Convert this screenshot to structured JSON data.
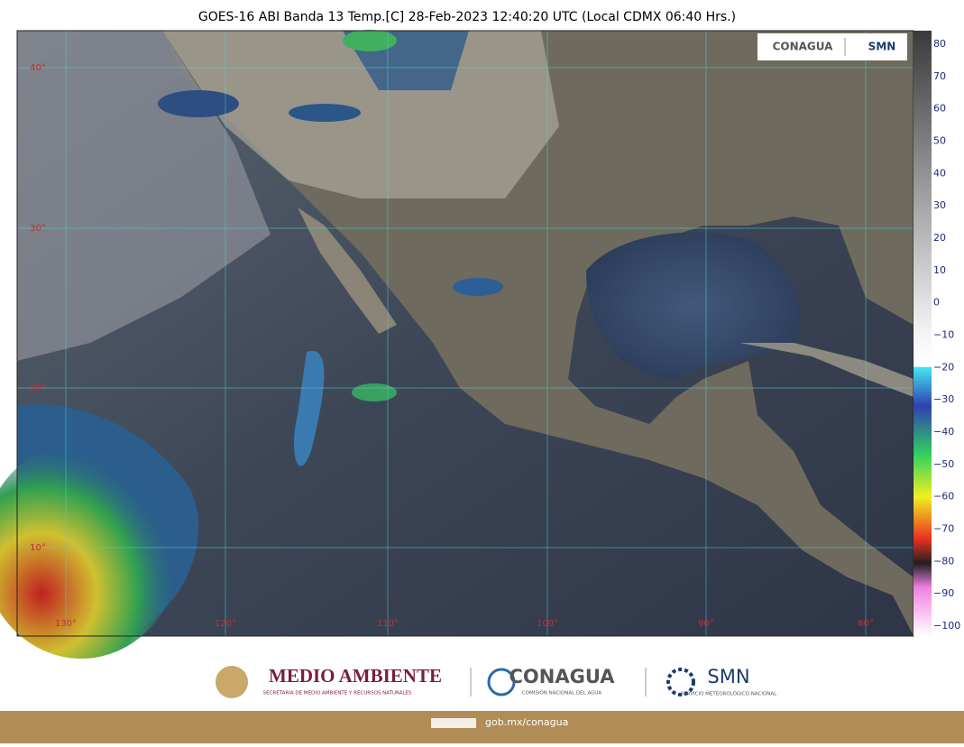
{
  "header": {
    "title": "GOES-16 ABI Banda 13 Temp.[C] 28-Feb-2023 12:40:20 UTC (Local CDMX  06:40 Hrs.)"
  },
  "map": {
    "logo": {
      "left": "CONAGUA",
      "right": "SMN"
    },
    "lat_labels": [
      "40°",
      "30°",
      "20°",
      "10°"
    ],
    "lon_labels": [
      "130°",
      "120°",
      "110°",
      "100°",
      "90°",
      "80°"
    ]
  },
  "colorbar": {
    "labels": [
      "80",
      "70",
      "60",
      "50",
      "40",
      "30",
      "20",
      "10",
      "0",
      "−10",
      "−20",
      "−30",
      "−40",
      "−50",
      "−60",
      "−70",
      "−80",
      "−90",
      "−100"
    ]
  },
  "footer": {
    "semarnat": {
      "title": "MEDIO AMBIENTE",
      "subtitle": "SECRETARÍA DE MEDIO AMBIENTE Y RECURSOS NATURALES"
    },
    "conagua": {
      "title": "CONAGUA",
      "subtitle": "COMISIÓN NACIONAL DEL AGUA"
    },
    "smn": {
      "title": "SMN",
      "subtitle": "SERVICIO METEOROLÓGICO NACIONAL"
    },
    "url": "gob.mx/conagua"
  }
}
